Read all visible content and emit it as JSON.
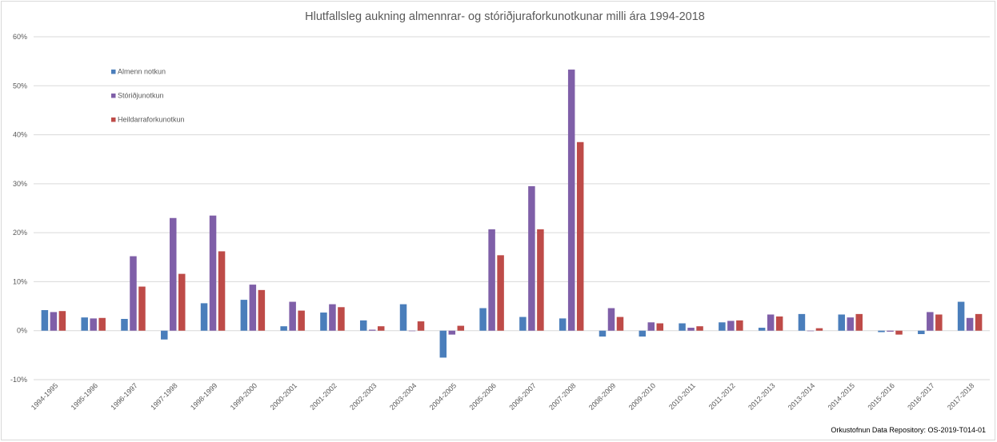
{
  "chart_data": {
    "type": "bar",
    "title": "Hlutfallsleg aukning almennrar- og stóriðjuraforkunotkunar milli ára 1994-2018",
    "xlabel": "",
    "ylabel": "",
    "ylim": [
      -10,
      60
    ],
    "yticks": [
      -10,
      0,
      10,
      20,
      30,
      40,
      50,
      60
    ],
    "ytick_labels": [
      "-10%",
      "0%",
      "10%",
      "20%",
      "30%",
      "40%",
      "50%",
      "60%"
    ],
    "grid": true,
    "legend_position": "top-left",
    "categories": [
      "1994-1995",
      "1995-1996",
      "1996-1997",
      "1997-1998",
      "1998-1999",
      "1999-2000",
      "2000-2001",
      "2001-2002",
      "2002-2003",
      "2003-2004",
      "2004-2005",
      "2005-2006",
      "2006-2007",
      "2007-2008",
      "2008-2009",
      "2009-2010",
      "2010-2011",
      "2011-2012",
      "2012-2013",
      "2013-2014",
      "2014-2015",
      "2015-2016",
      "2016-2017",
      "2017-2018"
    ],
    "series": [
      {
        "name": "Almenn notkun",
        "color": "#4a7ebb",
        "values": [
          4.2,
          2.7,
          2.4,
          -1.8,
          5.6,
          6.3,
          0.9,
          3.7,
          2.1,
          5.4,
          -5.5,
          4.6,
          2.8,
          2.5,
          -1.2,
          -1.2,
          1.5,
          1.7,
          0.6,
          3.4,
          3.3,
          -0.3,
          -0.7,
          5.9
        ]
      },
      {
        "name": "Stóriðjunotkun",
        "color": "#7f5fa8",
        "values": [
          3.8,
          2.5,
          15.2,
          23.0,
          23.5,
          9.4,
          5.9,
          5.4,
          0.2,
          0.0,
          -0.8,
          20.7,
          29.5,
          53.3,
          4.6,
          1.7,
          0.6,
          2.0,
          3.3,
          0.0,
          2.7,
          -0.2,
          3.8,
          2.6
        ]
      },
      {
        "name": "Heildarraforkunotkun",
        "color": "#be4b48",
        "values": [
          4.0,
          2.6,
          9.0,
          11.6,
          16.2,
          8.3,
          4.1,
          4.8,
          0.9,
          1.9,
          1.0,
          15.4,
          20.7,
          38.5,
          2.8,
          1.5,
          0.9,
          2.1,
          2.9,
          0.5,
          3.4,
          -0.8,
          3.3,
          3.4
        ]
      }
    ],
    "source_note": "Orkustofnun Data Repository: OS-2019-T014-01"
  }
}
